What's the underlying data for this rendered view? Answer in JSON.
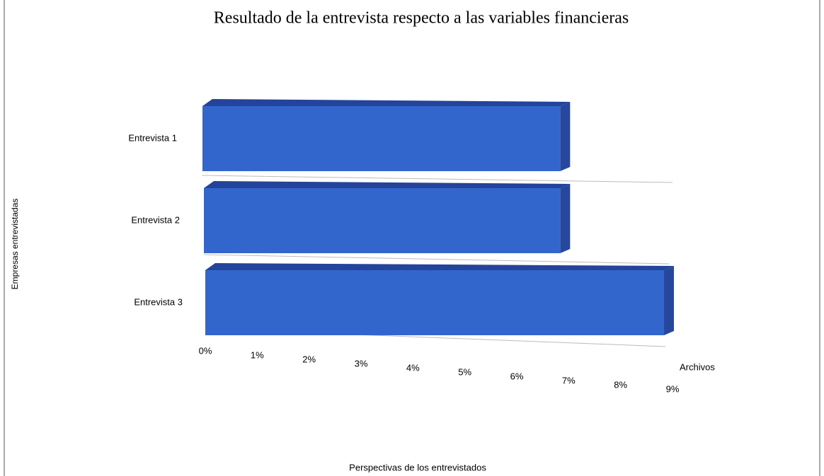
{
  "chart_data": {
    "type": "bar",
    "orientation": "horizontal",
    "title": "Resultado de la entrevista respecto a las variables financieras",
    "x_label": "Perspectivas de los entrevistados",
    "y_label": "Empresas entrevistadas",
    "categories": [
      "Entrevista 1",
      "Entrevista 2",
      "Entrevista 3"
    ],
    "series": [
      {
        "name": "Archivos",
        "color": "#3366cc",
        "values": [
          7,
          7,
          9
        ]
      }
    ],
    "xlim": [
      0,
      9
    ],
    "xticks": [
      {
        "value": 0,
        "label": "0%"
      },
      {
        "value": 1,
        "label": "1%"
      },
      {
        "value": 2,
        "label": "2%"
      },
      {
        "value": 3,
        "label": "3%"
      },
      {
        "value": 4,
        "label": "4%"
      },
      {
        "value": 5,
        "label": "5%"
      },
      {
        "value": 6,
        "label": "6%"
      },
      {
        "value": 7,
        "label": "7%"
      },
      {
        "value": 8,
        "label": "8%"
      },
      {
        "value": 9,
        "label": "9%"
      }
    ],
    "grid": false,
    "legend": "right"
  }
}
